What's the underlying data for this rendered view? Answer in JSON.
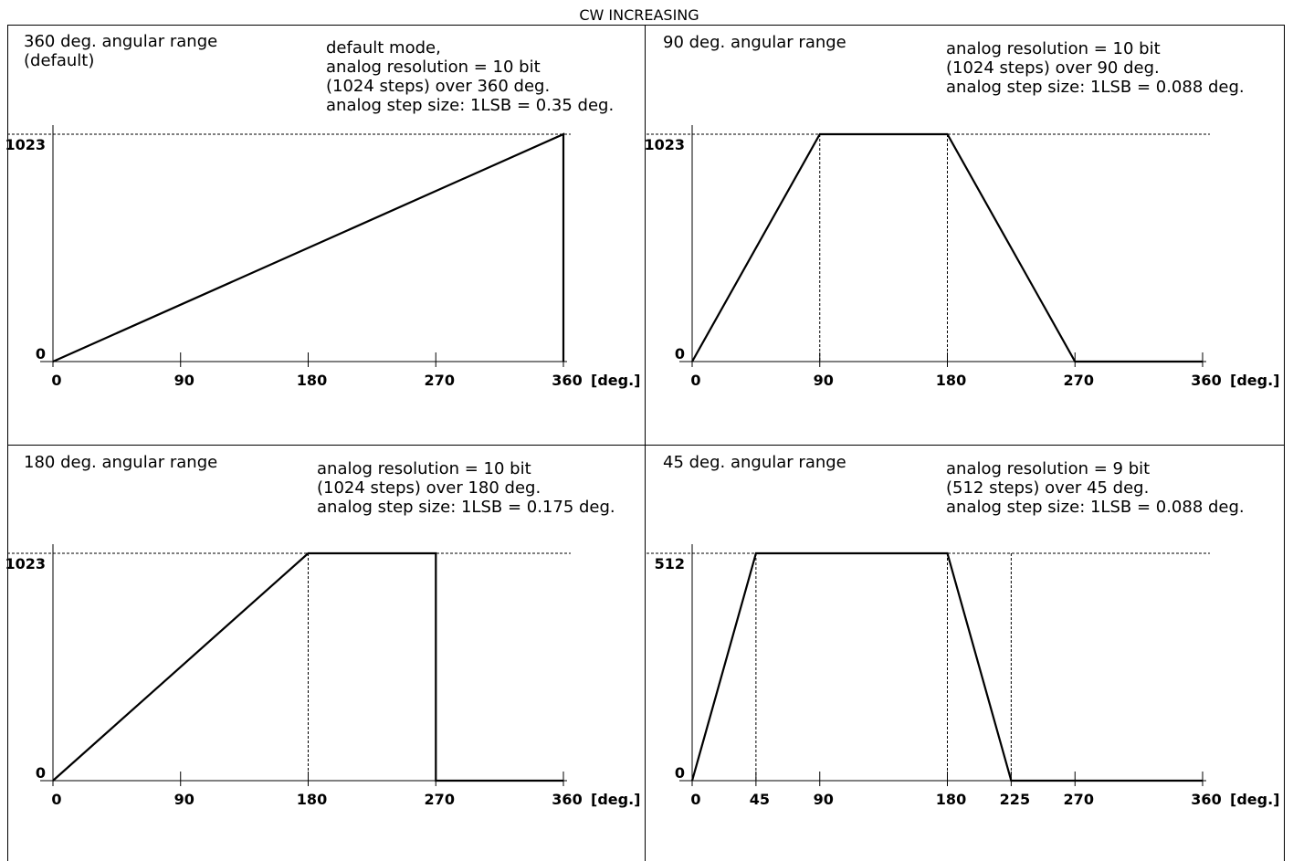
{
  "title": "CW INCREASING",
  "x_unit": "[deg.]",
  "chart_data": [
    {
      "type": "line",
      "panel_title": [
        "360 deg. angular range",
        "(default)"
      ],
      "note": [
        "default mode,",
        "analog resolution = 10 bit",
        "(1024 steps) over 360 deg.",
        "analog step size: 1LSB = 0.35 deg."
      ],
      "x_ticks": [
        0,
        90,
        180,
        270,
        360
      ],
      "y_ticks": [
        0,
        1023
      ],
      "xlim": [
        0,
        360
      ],
      "ylim": [
        0,
        1023
      ],
      "points": [
        [
          0,
          0
        ],
        [
          360,
          1023
        ],
        [
          360,
          0
        ]
      ],
      "guides": [
        360
      ]
    },
    {
      "type": "line",
      "panel_title": [
        "90 deg. angular range"
      ],
      "note": [
        "analog resolution = 10 bit",
        "(1024 steps) over 90 deg.",
        "analog step size: 1LSB = 0.088 deg."
      ],
      "x_ticks": [
        0,
        90,
        180,
        270,
        360
      ],
      "y_ticks": [
        0,
        1023
      ],
      "xlim": [
        0,
        360
      ],
      "ylim": [
        0,
        1023
      ],
      "points": [
        [
          0,
          0
        ],
        [
          90,
          1023
        ],
        [
          180,
          1023
        ],
        [
          270,
          0
        ],
        [
          360,
          0
        ]
      ],
      "guides": [
        90,
        180
      ]
    },
    {
      "type": "line",
      "panel_title": [
        "180 deg. angular range"
      ],
      "note": [
        "analog resolution = 10 bit",
        "(1024 steps) over 180 deg.",
        "analog step size: 1LSB = 0.175 deg."
      ],
      "x_ticks": [
        0,
        90,
        180,
        270,
        360
      ],
      "y_ticks": [
        0,
        1023
      ],
      "xlim": [
        0,
        360
      ],
      "ylim": [
        0,
        1023
      ],
      "points": [
        [
          0,
          0
        ],
        [
          180,
          1023
        ],
        [
          270,
          1023
        ],
        [
          270,
          0
        ],
        [
          360,
          0
        ]
      ],
      "guides": [
        180
      ]
    },
    {
      "type": "line",
      "panel_title": [
        "45 deg. angular range"
      ],
      "note": [
        "analog resolution = 9 bit",
        "(512 steps) over 45 deg.",
        "analog step size: 1LSB = 0.088 deg."
      ],
      "x_ticks": [
        0,
        45,
        90,
        180,
        225,
        270,
        360
      ],
      "y_ticks": [
        0,
        512
      ],
      "xlim": [
        0,
        360
      ],
      "ylim": [
        0,
        512
      ],
      "points": [
        [
          0,
          0
        ],
        [
          45,
          512
        ],
        [
          180,
          512
        ],
        [
          225,
          0
        ],
        [
          360,
          0
        ]
      ],
      "guides": [
        45,
        180,
        225
      ]
    }
  ]
}
